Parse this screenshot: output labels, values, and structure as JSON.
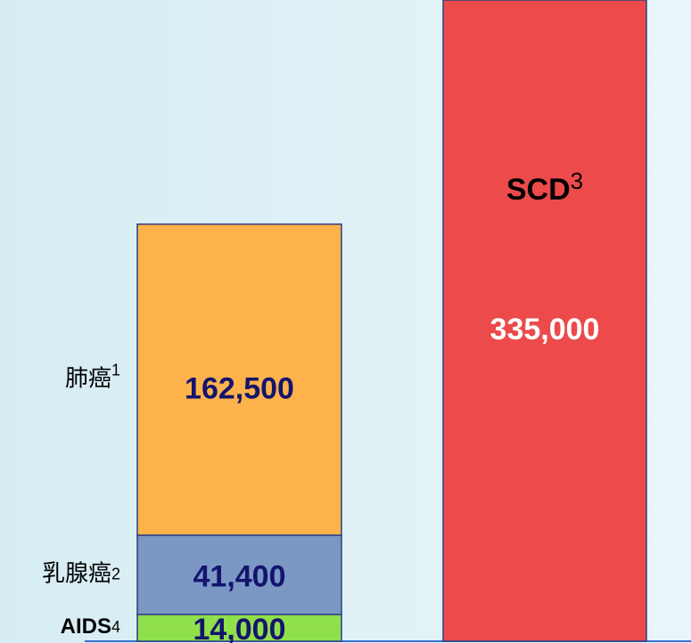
{
  "chart_data": {
    "type": "stacked_bar",
    "series": [
      {
        "name": "AIDS",
        "note": "4",
        "color": "#8fe04b",
        "label_color": "#14146e",
        "values": [
          14000,
          null
        ],
        "value_labels": [
          "14,000",
          null
        ]
      },
      {
        "name": "乳腺癌",
        "note": "2",
        "color": "#7b98c4",
        "label_color": "#14146e",
        "values": [
          41400,
          null
        ],
        "value_labels": [
          "41,400",
          null
        ]
      },
      {
        "name": "肺癌",
        "note": "1",
        "color": "#fdb24b",
        "label_color": "#14146e",
        "values": [
          162500,
          null
        ],
        "value_labels": [
          "162,500",
          null
        ]
      },
      {
        "name": "SCD",
        "note": "3",
        "color": "#ec4a4b",
        "label_color": "#ffffff",
        "values": [
          null,
          335000
        ],
        "value_labels": [
          null,
          "335,000"
        ]
      }
    ],
    "ylim": [
      0,
      335000
    ]
  }
}
